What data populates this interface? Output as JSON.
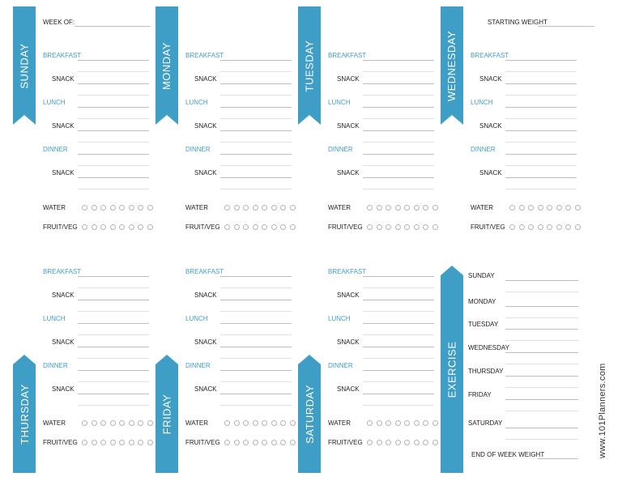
{
  "labels": {
    "week_of": "WEEK OF:",
    "starting_weight": "STARTING WEIGHT",
    "breakfast": "BREAKFAST",
    "snack": "SNACK",
    "lunch": "LUNCH",
    "dinner": "DINNER",
    "water": "WATER",
    "fruit_veg": "FRUIT/VEG",
    "end_of_week_weight": "END OF WEEK WEIGHT"
  },
  "days": [
    {
      "key": "sunday",
      "title": "SUNDAY"
    },
    {
      "key": "monday",
      "title": "MONDAY"
    },
    {
      "key": "tuesday",
      "title": "TUESDAY"
    },
    {
      "key": "wednesday",
      "title": "WEDNESDAY"
    },
    {
      "key": "thursday",
      "title": "THURSDAY"
    },
    {
      "key": "friday",
      "title": "FRIDAY"
    },
    {
      "key": "saturday",
      "title": "SATURDAY"
    }
  ],
  "exercise": {
    "title": "EXERCISE",
    "days": [
      "SUNDAY",
      "MONDAY",
      "TUESDAY",
      "WEDNESDAY",
      "THURSDAY",
      "FRIDAY",
      "SATURDAY"
    ]
  },
  "tracker_circles": 8,
  "website": "www.101Planners.com",
  "colors": {
    "accent": "#3f9ec6",
    "text": "#222222",
    "line": "#bfbfbf"
  }
}
